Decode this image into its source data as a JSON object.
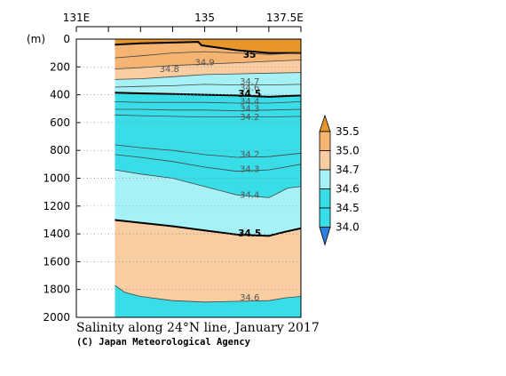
{
  "chart_data": {
    "type": "contour",
    "title": "Salinity along 24°N line, January 2017",
    "credit": "(C) Japan Meteorological Agency",
    "ylabel": "(m)",
    "x_ticks": [
      "131E",
      "135",
      "137.5E"
    ],
    "x_range": [
      131,
      138
    ],
    "y_ticks": [
      0,
      200,
      400,
      600,
      800,
      1000,
      1200,
      1400,
      1600,
      1800,
      2000
    ],
    "y_range": [
      0,
      2000
    ],
    "y_inverted": true,
    "data_extent_x": [
      132.2,
      138
    ],
    "colorbar": {
      "levels": [
        "35.5",
        "35.0",
        "34.7",
        "34.6",
        "34.5",
        "34.0"
      ],
      "colors": [
        "#e8952c",
        "#f5b472",
        "#f7cda1",
        "#a6f1f5",
        "#38dde8",
        "#2c7fdd"
      ]
    },
    "contours": [
      {
        "label": "35",
        "bold": true,
        "color": "#000",
        "x": [
          132.2,
          133.0,
          134.0,
          134.8,
          134.9,
          136.0,
          137.0,
          138.0
        ],
        "y": [
          40,
          30,
          25,
          20,
          45,
          80,
          100,
          100
        ]
      },
      {
        "label": "34.9",
        "bold": false,
        "color": "#444",
        "x": [
          132.2,
          133.0,
          134.0,
          135.0,
          136.0,
          137.0,
          138.0
        ],
        "y": [
          135,
          120,
          100,
          90,
          100,
          110,
          100
        ]
      },
      {
        "label": "34.8",
        "bold": false,
        "color": "#444",
        "x": [
          132.2,
          133.0,
          134.0,
          135.0,
          136.0,
          137.0,
          138.0
        ],
        "y": [
          215,
          205,
          190,
          180,
          170,
          160,
          150
        ]
      },
      {
        "label": "34.7",
        "bold": false,
        "color": "#444",
        "x": [
          132.2,
          133.0,
          134.0,
          135.0,
          136.0,
          137.0,
          138.0
        ],
        "y": [
          290,
          285,
          270,
          255,
          250,
          245,
          240
        ]
      },
      {
        "label": "34.6",
        "bold": false,
        "color": "#444",
        "x": [
          132.2,
          133.0,
          134.0,
          135.0,
          136.0,
          137.0,
          138.0
        ],
        "y": [
          345,
          340,
          335,
          325,
          330,
          330,
          325
        ]
      },
      {
        "label": "34.5",
        "bold": true,
        "color": "#000",
        "x": [
          132.2,
          133.0,
          134.0,
          135.0,
          136.0,
          137.0,
          138.0
        ],
        "y": [
          385,
          390,
          395,
          400,
          405,
          415,
          405
        ]
      },
      {
        "label": "34.4",
        "bold": false,
        "color": "#444",
        "x": [
          132.2,
          133.0,
          134.0,
          135.0,
          136.0,
          137.0,
          138.0
        ],
        "y": [
          450,
          455,
          455,
          455,
          460,
          460,
          450
        ]
      },
      {
        "label": "34.3",
        "bold": false,
        "color": "#444",
        "x": [
          132.2,
          133.0,
          134.0,
          135.0,
          136.0,
          137.0,
          138.0
        ],
        "y": [
          505,
          505,
          510,
          510,
          515,
          510,
          505
        ]
      },
      {
        "label": "34.2",
        "bold": false,
        "color": "#444",
        "x": [
          132.2,
          133.0,
          134.0,
          135.0,
          136.0,
          137.0,
          138.0
        ],
        "y": [
          545,
          550,
          555,
          560,
          560,
          560,
          555
        ]
      },
      {
        "label": "34.2",
        "bold": false,
        "color": "#444",
        "x": [
          132.2,
          133.0,
          134.0,
          135.0,
          136.0,
          137.0,
          138.0
        ],
        "y": [
          760,
          780,
          800,
          830,
          850,
          845,
          820
        ]
      },
      {
        "label": "34.3",
        "bold": false,
        "color": "#444",
        "x": [
          132.2,
          133.0,
          134.0,
          135.0,
          136.0,
          137.0,
          138.0
        ],
        "y": [
          830,
          850,
          880,
          920,
          950,
          940,
          900
        ]
      },
      {
        "label": "34.4",
        "bold": false,
        "color": "#444",
        "x": [
          132.2,
          133.0,
          134.0,
          135.0,
          136.0,
          137.0,
          137.6,
          138.0
        ],
        "y": [
          940,
          970,
          1000,
          1060,
          1120,
          1140,
          1070,
          1060
        ]
      },
      {
        "label": "34.5",
        "bold": true,
        "color": "#000",
        "x": [
          132.2,
          133.0,
          134.0,
          135.0,
          136.0,
          137.0,
          137.5,
          138.0
        ],
        "y": [
          1300,
          1320,
          1345,
          1375,
          1405,
          1415,
          1385,
          1360
        ]
      },
      {
        "label": "34.6",
        "bold": false,
        "color": "#444",
        "x": [
          132.2,
          132.5,
          133.0,
          134.0,
          135.0,
          136.0,
          137.0,
          137.5,
          138.0
        ],
        "y": [
          1770,
          1820,
          1850,
          1880,
          1890,
          1885,
          1880,
          1860,
          1850
        ]
      }
    ],
    "contour_label_positions": [
      {
        "text": "35",
        "bold": true,
        "x": 136.4,
        "y": 135
      },
      {
        "text": "34.9",
        "bold": false,
        "x": 135.0,
        "y": 190
      },
      {
        "text": "34.8",
        "bold": false,
        "x": 133.9,
        "y": 235
      },
      {
        "text": "34.7",
        "bold": false,
        "x": 136.4,
        "y": 325
      },
      {
        "text": "34.6",
        "bold": false,
        "x": 136.4,
        "y": 370
      },
      {
        "text": "34.5",
        "bold": true,
        "x": 136.4,
        "y": 415
      },
      {
        "text": "34.4",
        "bold": false,
        "x": 136.4,
        "y": 470
      },
      {
        "text": "34.3",
        "bold": false,
        "x": 136.4,
        "y": 520
      },
      {
        "text": "34.2",
        "bold": false,
        "x": 136.4,
        "y": 580
      },
      {
        "text": "34.2",
        "bold": false,
        "x": 136.4,
        "y": 850
      },
      {
        "text": "34.3",
        "bold": false,
        "x": 136.4,
        "y": 955
      },
      {
        "text": "34.4",
        "bold": false,
        "x": 136.4,
        "y": 1140
      },
      {
        "text": "34.5",
        "bold": true,
        "x": 136.4,
        "y": 1420
      },
      {
        "text": "34.6",
        "bold": false,
        "x": 136.4,
        "y": 1880
      }
    ]
  }
}
